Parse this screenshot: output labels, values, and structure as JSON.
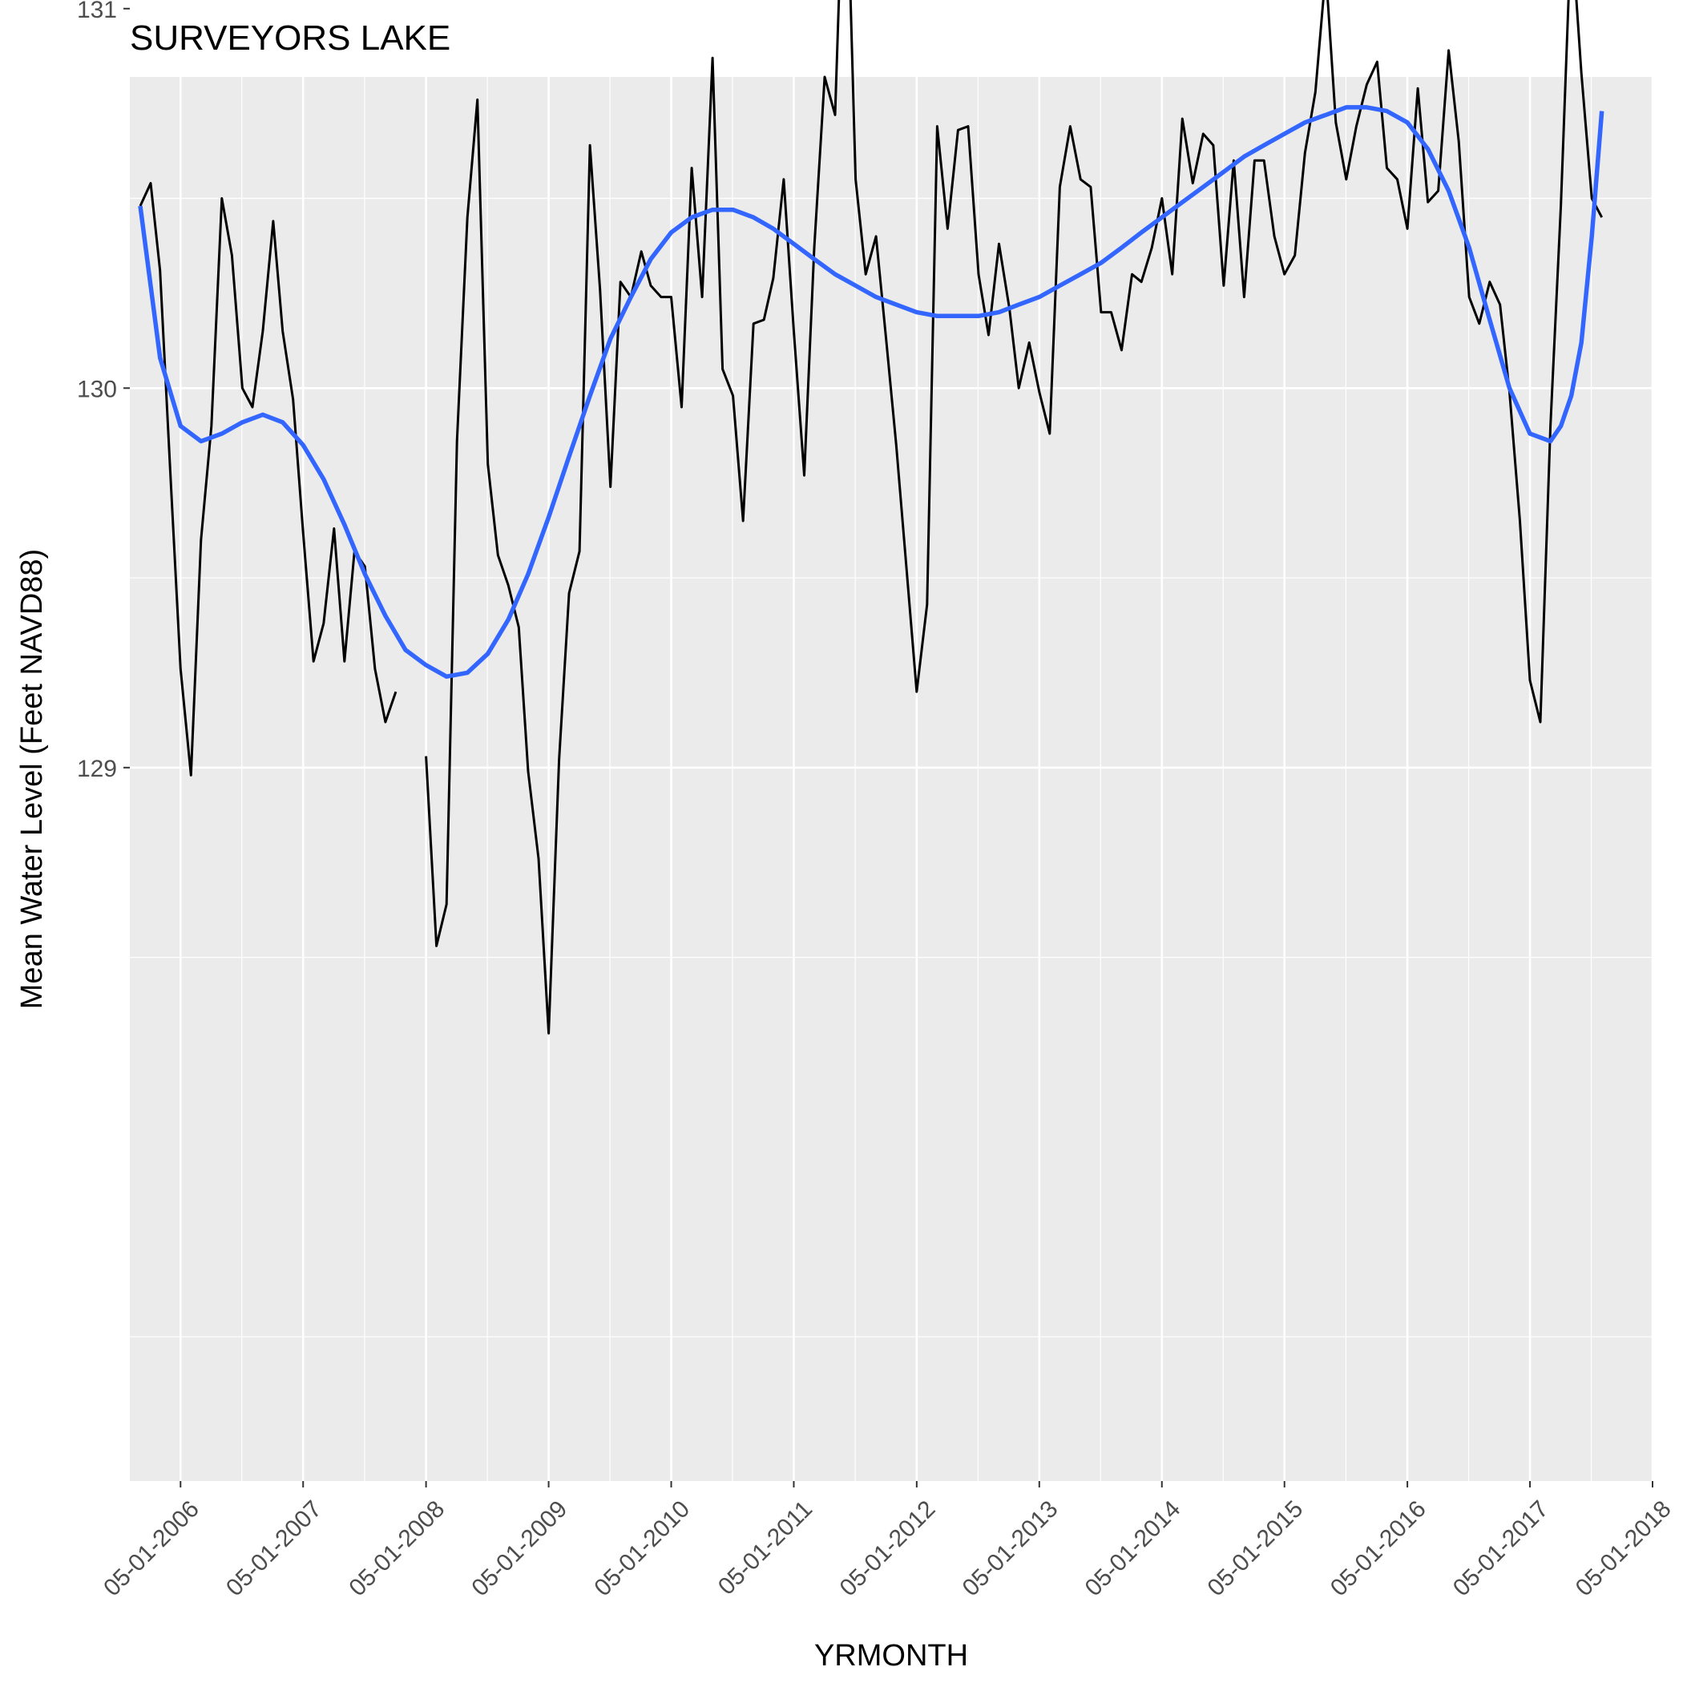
{
  "chart_data": {
    "type": "line",
    "title": "SURVEYORS LAKE",
    "xlabel": "YRMONTH",
    "ylabel": "Mean Water Level (Feet NAVD88)",
    "xlim": [
      "2005-12-01",
      "2018-05-01"
    ],
    "ylim": [
      127.12,
      130.82
    ],
    "x_ticks": [
      "05-01-2006",
      "05-01-2007",
      "05-01-2008",
      "05-01-2009",
      "05-01-2010",
      "05-01-2011",
      "05-01-2012",
      "05-01-2013",
      "05-01-2014",
      "05-01-2015",
      "05-01-2016",
      "05-01-2017",
      "05-01-2018"
    ],
    "y_ticks": [
      129,
      130,
      131
    ],
    "grid": true,
    "series": [
      {
        "color": "#000000",
        "points": [
          [
            "2006-01-01",
            130.48
          ],
          [
            "2006-02-01",
            130.54
          ],
          [
            "2006-03-01",
            130.31
          ],
          [
            "2006-04-01",
            129.77
          ],
          [
            "2006-05-01",
            129.26
          ],
          [
            "2006-06-01",
            128.98
          ],
          [
            "2006-07-01",
            129.6
          ],
          [
            "2006-08-01",
            129.9
          ],
          [
            "2006-09-01",
            130.5
          ],
          [
            "2006-10-01",
            130.35
          ],
          [
            "2006-11-01",
            130.0
          ],
          [
            "2006-12-01",
            129.95
          ],
          [
            "2007-01-01",
            130.15
          ],
          [
            "2007-02-01",
            130.44
          ],
          [
            "2007-03-01",
            130.15
          ],
          [
            "2007-04-01",
            129.97
          ],
          [
            "2007-05-01",
            129.62
          ],
          [
            "2007-06-01",
            129.28
          ],
          [
            "2007-07-01",
            129.38
          ],
          [
            "2007-08-01",
            129.63
          ],
          [
            "2007-09-01",
            129.28
          ],
          [
            "2007-10-01",
            129.57
          ],
          [
            "2007-11-01",
            129.53
          ],
          [
            "2007-12-01",
            129.26
          ],
          [
            "2008-01-01",
            129.12
          ],
          [
            "2008-02-01",
            129.2
          ],
          [
            "2008-05-01",
            129.03
          ],
          [
            "2008-06-01",
            128.53
          ],
          [
            "2008-07-01",
            128.64
          ],
          [
            "2008-08-01",
            129.86
          ],
          [
            "2008-09-01",
            130.45
          ],
          [
            "2008-10-01",
            130.76
          ],
          [
            "2008-11-01",
            129.8
          ],
          [
            "2008-12-01",
            129.56
          ],
          [
            "2009-01-01",
            129.48
          ],
          [
            "2009-02-01",
            129.37
          ],
          [
            "2009-03-01",
            128.99
          ],
          [
            "2009-04-01",
            128.76
          ],
          [
            "2009-05-01",
            128.3
          ],
          [
            "2009-06-01",
            129.02
          ],
          [
            "2009-07-01",
            129.46
          ],
          [
            "2009-08-01",
            129.57
          ],
          [
            "2009-09-01",
            130.64
          ],
          [
            "2009-10-01",
            130.26
          ],
          [
            "2009-11-01",
            129.74
          ],
          [
            "2009-12-01",
            130.28
          ],
          [
            "2010-01-01",
            130.24
          ],
          [
            "2010-02-01",
            130.36
          ],
          [
            "2010-03-01",
            130.27
          ],
          [
            "2010-04-01",
            130.24
          ],
          [
            "2010-05-01",
            130.24
          ],
          [
            "2010-06-01",
            129.95
          ],
          [
            "2010-07-01",
            130.58
          ],
          [
            "2010-08-01",
            130.24
          ],
          [
            "2010-09-01",
            130.87
          ],
          [
            "2010-10-01",
            130.05
          ],
          [
            "2010-11-01",
            129.98
          ],
          [
            "2010-12-01",
            129.65
          ],
          [
            "2011-01-01",
            130.17
          ],
          [
            "2011-02-01",
            130.18
          ],
          [
            "2011-03-01",
            130.29
          ],
          [
            "2011-04-01",
            130.55
          ],
          [
            "2011-05-01",
            130.15
          ],
          [
            "2011-06-01",
            129.77
          ],
          [
            "2011-07-01",
            130.37
          ],
          [
            "2011-08-01",
            130.82
          ],
          [
            "2011-09-01",
            130.72
          ],
          [
            "2011-10-01",
            131.53
          ],
          [
            "2011-11-01",
            130.55
          ],
          [
            "2011-12-01",
            130.3
          ],
          [
            "2012-01-01",
            130.4
          ],
          [
            "2012-02-01",
            130.12
          ],
          [
            "2012-03-01",
            129.85
          ],
          [
            "2012-04-01",
            129.52
          ],
          [
            "2012-05-01",
            129.2
          ],
          [
            "2012-06-01",
            129.43
          ],
          [
            "2012-07-01",
            130.69
          ],
          [
            "2012-08-01",
            130.42
          ],
          [
            "2012-09-01",
            130.68
          ],
          [
            "2012-10-01",
            130.69
          ],
          [
            "2012-11-01",
            130.3
          ],
          [
            "2012-12-01",
            130.14
          ],
          [
            "2013-01-01",
            130.38
          ],
          [
            "2013-02-01",
            130.21
          ],
          [
            "2013-03-01",
            130.0
          ],
          [
            "2013-04-01",
            130.12
          ],
          [
            "2013-05-01",
            129.99
          ],
          [
            "2013-06-01",
            129.88
          ],
          [
            "2013-07-01",
            130.53
          ],
          [
            "2013-08-01",
            130.69
          ],
          [
            "2013-09-01",
            130.55
          ],
          [
            "2013-10-01",
            130.53
          ],
          [
            "2013-11-01",
            130.2
          ],
          [
            "2013-12-01",
            130.2
          ],
          [
            "2014-01-01",
            130.1
          ],
          [
            "2014-02-01",
            130.3
          ],
          [
            "2014-03-01",
            130.28
          ],
          [
            "2014-04-01",
            130.37
          ],
          [
            "2014-05-01",
            130.5
          ],
          [
            "2014-06-01",
            130.3
          ],
          [
            "2014-07-01",
            130.71
          ],
          [
            "2014-08-01",
            130.54
          ],
          [
            "2014-09-01",
            130.67
          ],
          [
            "2014-10-01",
            130.64
          ],
          [
            "2014-11-01",
            130.27
          ],
          [
            "2014-12-01",
            130.6
          ],
          [
            "2015-01-01",
            130.24
          ],
          [
            "2015-02-01",
            130.6
          ],
          [
            "2015-03-01",
            130.6
          ],
          [
            "2015-04-01",
            130.4
          ],
          [
            "2015-05-01",
            130.3
          ],
          [
            "2015-06-01",
            130.35
          ],
          [
            "2015-07-01",
            130.62
          ],
          [
            "2015-08-01",
            130.78
          ],
          [
            "2015-09-01",
            131.1
          ],
          [
            "2015-10-01",
            130.7
          ],
          [
            "2015-11-01",
            130.55
          ],
          [
            "2015-12-01",
            130.69
          ],
          [
            "2016-01-01",
            130.8
          ],
          [
            "2016-02-01",
            130.86
          ],
          [
            "2016-03-01",
            130.58
          ],
          [
            "2016-04-01",
            130.55
          ],
          [
            "2016-05-01",
            130.42
          ],
          [
            "2016-06-01",
            130.79
          ],
          [
            "2016-07-01",
            130.49
          ],
          [
            "2016-08-01",
            130.52
          ],
          [
            "2016-09-01",
            130.89
          ],
          [
            "2016-10-01",
            130.65
          ],
          [
            "2016-11-01",
            130.24
          ],
          [
            "2016-12-01",
            130.17
          ],
          [
            "2017-01-01",
            130.28
          ],
          [
            "2017-02-01",
            130.22
          ],
          [
            "2017-03-01",
            129.99
          ],
          [
            "2017-04-01",
            129.65
          ],
          [
            "2017-05-01",
            129.23
          ],
          [
            "2017-06-01",
            129.12
          ],
          [
            "2017-07-01",
            129.9
          ],
          [
            "2017-08-01",
            130.48
          ],
          [
            "2017-09-01",
            131.22
          ],
          [
            "2017-10-01",
            130.83
          ],
          [
            "2017-11-01",
            130.5
          ],
          [
            "2017-12-01",
            130.45
          ]
        ]
      },
      {
        "color": "#3366FF",
        "points": [
          [
            "2006-01-01",
            130.48
          ],
          [
            "2006-03-01",
            130.08
          ],
          [
            "2006-05-01",
            129.9
          ],
          [
            "2006-07-01",
            129.86
          ],
          [
            "2006-09-01",
            129.88
          ],
          [
            "2006-11-01",
            129.91
          ],
          [
            "2007-01-01",
            129.93
          ],
          [
            "2007-03-01",
            129.91
          ],
          [
            "2007-05-01",
            129.85
          ],
          [
            "2007-07-01",
            129.76
          ],
          [
            "2007-09-01",
            129.64
          ],
          [
            "2007-11-01",
            129.51
          ],
          [
            "2008-01-01",
            129.4
          ],
          [
            "2008-03-01",
            129.31
          ],
          [
            "2008-05-01",
            129.27
          ],
          [
            "2008-07-01",
            129.24
          ],
          [
            "2008-09-01",
            129.25
          ],
          [
            "2008-11-01",
            129.3
          ],
          [
            "2009-01-01",
            129.39
          ],
          [
            "2009-03-01",
            129.51
          ],
          [
            "2009-05-01",
            129.66
          ],
          [
            "2009-07-01",
            129.82
          ],
          [
            "2009-09-01",
            129.98
          ],
          [
            "2009-11-01",
            130.13
          ],
          [
            "2010-01-01",
            130.24
          ],
          [
            "2010-03-01",
            130.34
          ],
          [
            "2010-05-01",
            130.41
          ],
          [
            "2010-07-01",
            130.45
          ],
          [
            "2010-09-01",
            130.47
          ],
          [
            "2010-11-01",
            130.47
          ],
          [
            "2011-01-01",
            130.45
          ],
          [
            "2011-03-01",
            130.42
          ],
          [
            "2011-05-01",
            130.38
          ],
          [
            "2011-07-01",
            130.34
          ],
          [
            "2011-09-01",
            130.3
          ],
          [
            "2011-11-01",
            130.27
          ],
          [
            "2012-01-01",
            130.24
          ],
          [
            "2012-03-01",
            130.22
          ],
          [
            "2012-05-01",
            130.2
          ],
          [
            "2012-07-01",
            130.19
          ],
          [
            "2012-09-01",
            130.19
          ],
          [
            "2012-11-01",
            130.19
          ],
          [
            "2013-01-01",
            130.2
          ],
          [
            "2013-03-01",
            130.22
          ],
          [
            "2013-05-01",
            130.24
          ],
          [
            "2013-07-01",
            130.27
          ],
          [
            "2013-09-01",
            130.3
          ],
          [
            "2013-11-01",
            130.33
          ],
          [
            "2014-01-01",
            130.37
          ],
          [
            "2014-03-01",
            130.41
          ],
          [
            "2014-05-01",
            130.45
          ],
          [
            "2014-07-01",
            130.49
          ],
          [
            "2014-09-01",
            130.53
          ],
          [
            "2014-11-01",
            130.57
          ],
          [
            "2015-01-01",
            130.61
          ],
          [
            "2015-03-01",
            130.64
          ],
          [
            "2015-05-01",
            130.67
          ],
          [
            "2015-07-01",
            130.7
          ],
          [
            "2015-09-01",
            130.72
          ],
          [
            "2015-11-01",
            130.74
          ],
          [
            "2016-01-01",
            130.74
          ],
          [
            "2016-03-01",
            130.73
          ],
          [
            "2016-05-01",
            130.7
          ],
          [
            "2016-07-01",
            130.63
          ],
          [
            "2016-09-01",
            130.52
          ],
          [
            "2016-11-01",
            130.37
          ],
          [
            "2017-01-01",
            130.18
          ],
          [
            "2017-03-01",
            130.0
          ],
          [
            "2017-05-01",
            129.88
          ],
          [
            "2017-07-01",
            129.86
          ],
          [
            "2017-08-01",
            129.9
          ],
          [
            "2017-09-01",
            129.98
          ],
          [
            "2017-10-01",
            130.12
          ],
          [
            "2017-11-01",
            130.4
          ],
          [
            "2017-12-01",
            130.73
          ]
        ]
      }
    ]
  }
}
